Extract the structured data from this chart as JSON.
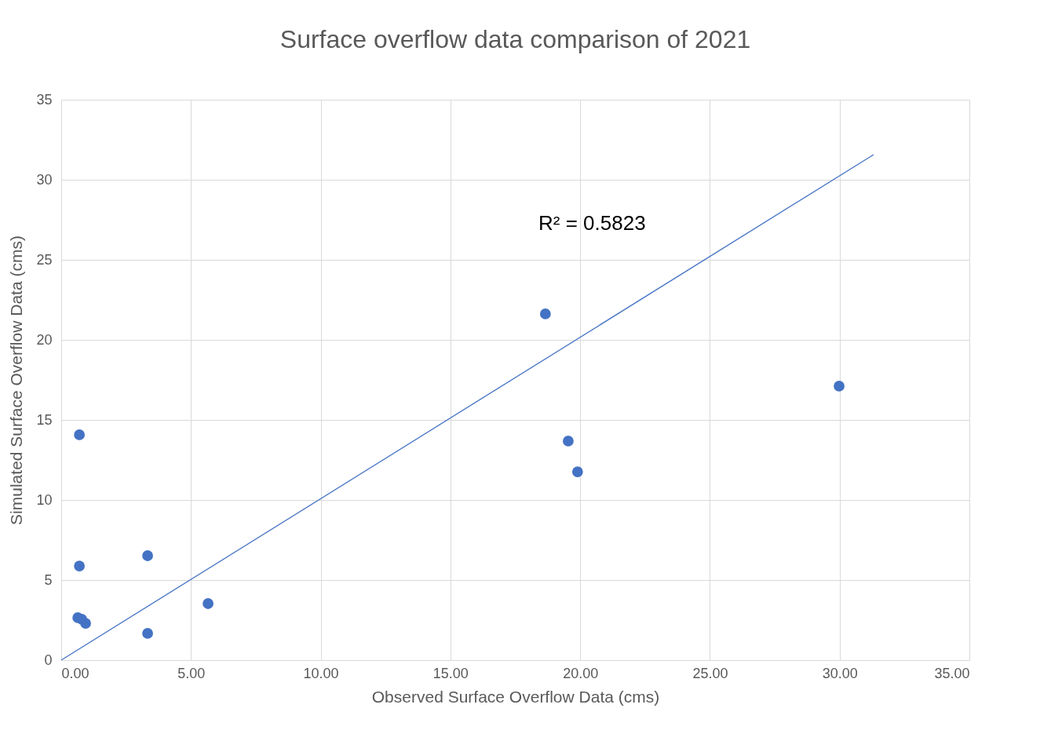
{
  "chart_data": {
    "type": "scatter",
    "title": "Surface overflow data comparison of 2021",
    "xlabel": "Observed Surface Overflow Data (cms)",
    "ylabel": "Simulated Surface Overflow Data (cms)",
    "series": [
      {
        "color": "#4472c4",
        "marker": "circle",
        "x": [
          0.7,
          0.7,
          0.64,
          0.79,
          0.94,
          3.33,
          3.33,
          5.66,
          18.66,
          19.54,
          19.9,
          29.98
        ],
        "values": [
          14.07,
          5.88,
          2.65,
          2.55,
          2.3,
          6.52,
          1.67,
          3.53,
          21.62,
          13.68,
          11.76,
          17.11
        ]
      },
      {
        "type": "line",
        "color": "#4472c4",
        "x": [
          0,
          31.31
        ],
        "values": [
          0,
          31.57
        ]
      }
    ],
    "xlim": [
      0,
      35
    ],
    "ylim": [
      0,
      35
    ],
    "xticks": [
      {
        "value": 0,
        "label": "0.00"
      },
      {
        "value": 5,
        "label": "5.00"
      },
      {
        "value": 10,
        "label": "10.00"
      },
      {
        "value": 15,
        "label": "15.00"
      },
      {
        "value": 20,
        "label": "20.00"
      },
      {
        "value": 25,
        "label": "25.00"
      },
      {
        "value": 30,
        "label": "30.00"
      },
      {
        "value": 35,
        "label": "35.00"
      }
    ],
    "yticks": [
      0,
      5,
      10,
      15,
      20,
      25,
      30,
      35
    ],
    "annotations": [
      "R² = 0.5823"
    ],
    "grid": true,
    "line_style": "solid"
  }
}
